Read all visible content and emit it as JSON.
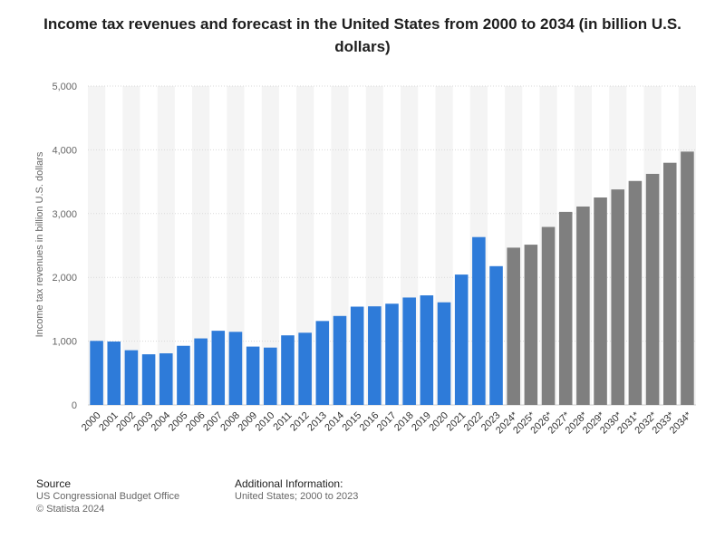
{
  "chart_data": {
    "type": "bar",
    "title": "Income tax revenues and forecast in the United States from 2000 to 2034 (in billion U.S. dollars)",
    "xlabel": "",
    "ylabel": "Income tax revenues in billion U.S. dollars",
    "ylim": [
      0,
      5000
    ],
    "yticks": [
      0,
      1000,
      2000,
      3000,
      4000,
      5000
    ],
    "ytick_labels": [
      "0",
      "1,000",
      "2,000",
      "3,000",
      "4,000",
      "5,000"
    ],
    "grid": true,
    "legend": "none",
    "categories": [
      "2000",
      "2001",
      "2002",
      "2003",
      "2004",
      "2005",
      "2006",
      "2007",
      "2008",
      "2009",
      "2010",
      "2011",
      "2012",
      "2013",
      "2014",
      "2015",
      "2016",
      "2017",
      "2018",
      "2019",
      "2020",
      "2021",
      "2022",
      "2023",
      "2024*",
      "2025*",
      "2026*",
      "2027*",
      "2028*",
      "2029*",
      "2030*",
      "2031*",
      "2032*",
      "2033*",
      "2034*"
    ],
    "values": [
      1004,
      994,
      858,
      794,
      809,
      927,
      1043,
      1163,
      1146,
      915,
      899,
      1091,
      1132,
      1316,
      1395,
      1541,
      1546,
      1587,
      1684,
      1718,
      1609,
      2044,
      2632,
      2176,
      2466,
      2513,
      2791,
      3027,
      3111,
      3253,
      3379,
      3512,
      3623,
      3797,
      3972
    ],
    "colors": {
      "actual": "#2e7bd9",
      "forecast": "#7f7f7f"
    },
    "actual_count": 24
  },
  "footer": {
    "source_heading": "Source",
    "source_lines": [
      "US Congressional Budget Office",
      "© Statista 2024"
    ],
    "info_heading": "Additional Information:",
    "info_lines": [
      "United States; 2000 to 2023"
    ]
  }
}
